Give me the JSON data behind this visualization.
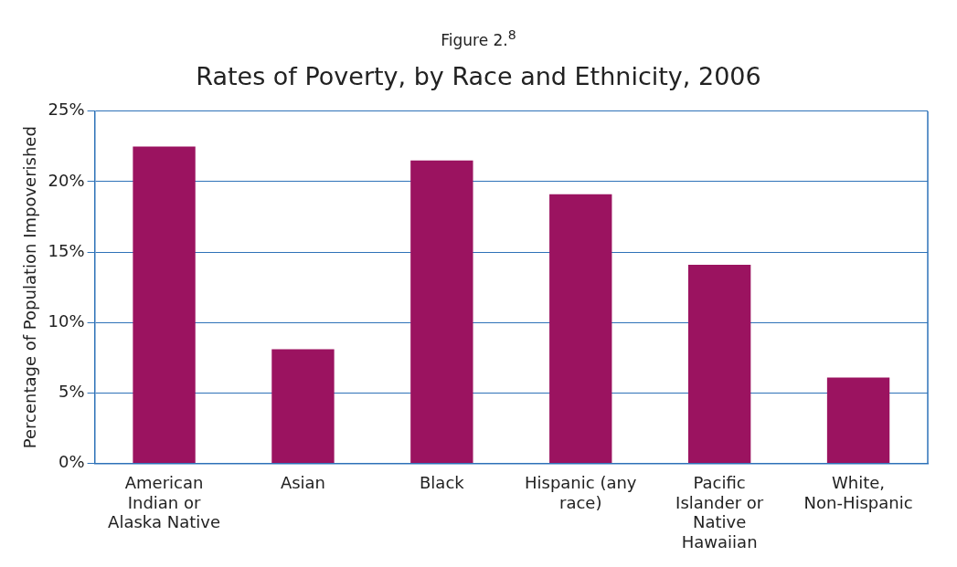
{
  "chart_data": {
    "type": "bar",
    "subtitle": "Figure 2.$^{8}$",
    "title": "Rates of Poverty, by Race and Ethnicity, 2006",
    "ylabel": "Percentage of Population Impoverished",
    "categories": [
      "American Indian or Alaska Native",
      "Asian",
      "Black",
      "Hispanic (any race)",
      "Pacific Islander or Native Hawaiian",
      "White, Non-Hispanic"
    ],
    "values": [
      22.5,
      8.1,
      21.5,
      19.1,
      14.1,
      6.1
    ],
    "color": "#9b1360",
    "ylim": [
      0,
      25
    ],
    "yticks": [
      {
        "value": 0,
        "label": "0%"
      },
      {
        "value": 5,
        "label": "5%"
      },
      {
        "value": 10,
        "label": "10%"
      },
      {
        "value": 15,
        "label": "15%"
      },
      {
        "value": 20,
        "label": "20%"
      },
      {
        "value": 25,
        "label": "25%"
      }
    ],
    "grid": "y"
  }
}
